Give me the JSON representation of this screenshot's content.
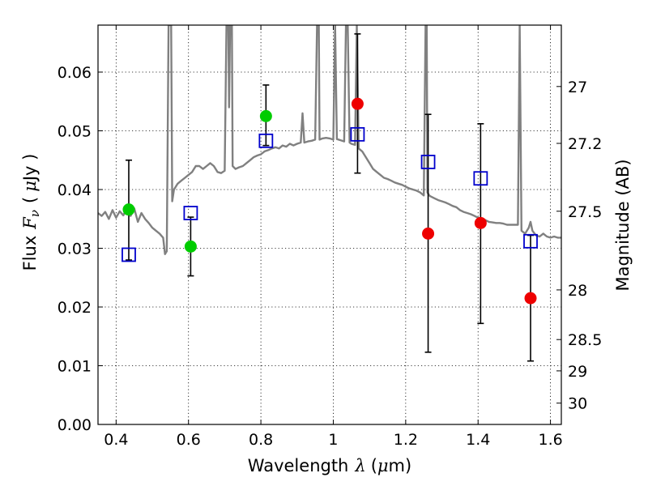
{
  "chart_data": {
    "type": "scatter",
    "title": "",
    "xlabel": {
      "text": "Wavelength",
      "symbol": "λ",
      "unit_open": "(",
      "unit_mu": "μ",
      "unit_rest": "m)"
    },
    "ylabel": {
      "text": "Flux",
      "symbol": "F",
      "subscript": "ν",
      "unit_open": "(",
      "unit_mu": "μ",
      "unit_rest": "Jy )"
    },
    "y2label": "Magnitude (AB)",
    "xlim": [
      0.35,
      1.63
    ],
    "ylim": [
      0.0,
      0.068
    ],
    "grid": true,
    "grid_style": "dotted",
    "x_ticks": [
      {
        "value": 0.4,
        "label": "0.4"
      },
      {
        "value": 0.6,
        "label": "0.6"
      },
      {
        "value": 0.8,
        "label": "0.8"
      },
      {
        "value": 1.0,
        "label": "1"
      },
      {
        "value": 1.2,
        "label": "1.2"
      },
      {
        "value": 1.4,
        "label": "1.4"
      },
      {
        "value": 1.6,
        "label": "1.6"
      }
    ],
    "y_ticks": [
      {
        "value": 0.0,
        "label": "0.00"
      },
      {
        "value": 0.01,
        "label": "0.01"
      },
      {
        "value": 0.02,
        "label": "0.02"
      },
      {
        "value": 0.03,
        "label": "0.03"
      },
      {
        "value": 0.04,
        "label": "0.04"
      },
      {
        "value": 0.05,
        "label": "0.05"
      },
      {
        "value": 0.06,
        "label": "0.06"
      }
    ],
    "y2_ticks": [
      {
        "value": 27.0,
        "label": "27"
      },
      {
        "value": 27.2,
        "label": "27.2"
      },
      {
        "value": 27.5,
        "label": "27.5"
      },
      {
        "value": 28.0,
        "label": "28"
      },
      {
        "value": 28.5,
        "label": "28.5"
      },
      {
        "value": 29.0,
        "label": "29"
      },
      {
        "value": 30.0,
        "label": "30"
      }
    ],
    "colors": {
      "model": "#808080",
      "green_points": "#00cc00",
      "red_points": "#ee0000",
      "model_photometry": "#0000cc",
      "errorbars": "#000000"
    },
    "series": [
      {
        "kind": "line",
        "color": "#808080",
        "points": [
          [
            0.35,
            0.036
          ],
          [
            0.36,
            0.0355
          ],
          [
            0.37,
            0.0362
          ],
          [
            0.38,
            0.035
          ],
          [
            0.39,
            0.0365
          ],
          [
            0.4,
            0.0352
          ],
          [
            0.41,
            0.0363
          ],
          [
            0.42,
            0.0356
          ],
          [
            0.43,
            0.037
          ],
          [
            0.44,
            0.0355
          ],
          [
            0.45,
            0.0368
          ],
          [
            0.46,
            0.0345
          ],
          [
            0.47,
            0.036
          ],
          [
            0.48,
            0.035
          ],
          [
            0.49,
            0.0343
          ],
          [
            0.5,
            0.0335
          ],
          [
            0.51,
            0.033
          ],
          [
            0.52,
            0.0325
          ],
          [
            0.53,
            0.0318
          ],
          [
            0.535,
            0.029
          ],
          [
            0.54,
            0.0295
          ],
          [
            0.545,
            0.068
          ],
          [
            0.548,
            0.068
          ],
          [
            0.55,
            0.068
          ],
          [
            0.552,
            0.068
          ],
          [
            0.555,
            0.038
          ],
          [
            0.56,
            0.04
          ],
          [
            0.57,
            0.041
          ],
          [
            0.58,
            0.0415
          ],
          [
            0.59,
            0.042
          ],
          [
            0.6,
            0.0425
          ],
          [
            0.61,
            0.043
          ],
          [
            0.62,
            0.044
          ],
          [
            0.63,
            0.044
          ],
          [
            0.64,
            0.0435
          ],
          [
            0.65,
            0.044
          ],
          [
            0.66,
            0.0445
          ],
          [
            0.67,
            0.044
          ],
          [
            0.68,
            0.043
          ],
          [
            0.69,
            0.0428
          ],
          [
            0.7,
            0.0432
          ],
          [
            0.705,
            0.068
          ],
          [
            0.71,
            0.068
          ],
          [
            0.712,
            0.054
          ],
          [
            0.715,
            0.068
          ],
          [
            0.72,
            0.068
          ],
          [
            0.722,
            0.044
          ],
          [
            0.73,
            0.0435
          ],
          [
            0.74,
            0.0438
          ],
          [
            0.75,
            0.044
          ],
          [
            0.76,
            0.0445
          ],
          [
            0.77,
            0.045
          ],
          [
            0.78,
            0.0455
          ],
          [
            0.79,
            0.0458
          ],
          [
            0.8,
            0.046
          ],
          [
            0.81,
            0.0465
          ],
          [
            0.82,
            0.0467
          ],
          [
            0.83,
            0.047
          ],
          [
            0.84,
            0.0472
          ],
          [
            0.85,
            0.047
          ],
          [
            0.86,
            0.0475
          ],
          [
            0.87,
            0.0473
          ],
          [
            0.88,
            0.0478
          ],
          [
            0.89,
            0.0475
          ],
          [
            0.9,
            0.0478
          ],
          [
            0.91,
            0.048
          ],
          [
            0.915,
            0.053
          ],
          [
            0.92,
            0.048
          ],
          [
            0.93,
            0.0482
          ],
          [
            0.94,
            0.0483
          ],
          [
            0.95,
            0.0485
          ],
          [
            0.955,
            0.068
          ],
          [
            0.96,
            0.068
          ],
          [
            0.962,
            0.0485
          ],
          [
            0.97,
            0.0487
          ],
          [
            0.98,
            0.0488
          ],
          [
            0.99,
            0.0487
          ],
          [
            1.0,
            0.0485
          ],
          [
            1.005,
            0.068
          ],
          [
            1.01,
            0.0486
          ],
          [
            1.02,
            0.0484
          ],
          [
            1.03,
            0.0482
          ],
          [
            1.035,
            0.068
          ],
          [
            1.04,
            0.068
          ],
          [
            1.045,
            0.048
          ],
          [
            1.05,
            0.0478
          ],
          [
            1.06,
            0.0476
          ],
          [
            1.065,
            0.068
          ],
          [
            1.07,
            0.047
          ],
          [
            1.08,
            0.0465
          ],
          [
            1.09,
            0.0455
          ],
          [
            1.1,
            0.0445
          ],
          [
            1.11,
            0.0435
          ],
          [
            1.12,
            0.043
          ],
          [
            1.13,
            0.0425
          ],
          [
            1.14,
            0.042
          ],
          [
            1.15,
            0.0418
          ],
          [
            1.16,
            0.0415
          ],
          [
            1.17,
            0.0412
          ],
          [
            1.18,
            0.041
          ],
          [
            1.19,
            0.0408
          ],
          [
            1.2,
            0.0405
          ],
          [
            1.21,
            0.0402
          ],
          [
            1.22,
            0.04
          ],
          [
            1.23,
            0.0398
          ],
          [
            1.24,
            0.0395
          ],
          [
            1.25,
            0.039
          ],
          [
            1.255,
            0.068
          ],
          [
            1.258,
            0.068
          ],
          [
            1.26,
            0.0395
          ],
          [
            1.265,
            0.039
          ],
          [
            1.27,
            0.0388
          ],
          [
            1.28,
            0.0385
          ],
          [
            1.29,
            0.0382
          ],
          [
            1.3,
            0.038
          ],
          [
            1.31,
            0.0378
          ],
          [
            1.32,
            0.0375
          ],
          [
            1.33,
            0.0372
          ],
          [
            1.34,
            0.037
          ],
          [
            1.35,
            0.0365
          ],
          [
            1.36,
            0.0362
          ],
          [
            1.37,
            0.036
          ],
          [
            1.38,
            0.0358
          ],
          [
            1.39,
            0.0355
          ],
          [
            1.4,
            0.0352
          ],
          [
            1.41,
            0.035
          ],
          [
            1.42,
            0.0348
          ],
          [
            1.43,
            0.0345
          ],
          [
            1.44,
            0.0344
          ],
          [
            1.45,
            0.0343
          ],
          [
            1.46,
            0.0343
          ],
          [
            1.47,
            0.0342
          ],
          [
            1.48,
            0.034
          ],
          [
            1.49,
            0.034
          ],
          [
            1.5,
            0.034
          ],
          [
            1.51,
            0.034
          ],
          [
            1.515,
            0.068
          ],
          [
            1.52,
            0.033
          ],
          [
            1.53,
            0.0325
          ],
          [
            1.54,
            0.0335
          ],
          [
            1.545,
            0.0345
          ],
          [
            1.55,
            0.033
          ],
          [
            1.56,
            0.0322
          ],
          [
            1.57,
            0.032
          ],
          [
            1.58,
            0.0325
          ],
          [
            1.59,
            0.032
          ],
          [
            1.6,
            0.0318
          ],
          [
            1.61,
            0.032
          ],
          [
            1.62,
            0.0318
          ],
          [
            1.63,
            0.0318
          ]
        ]
      },
      {
        "kind": "points",
        "marker": "circle",
        "color": "#00cc00",
        "points": [
          {
            "x": 0.435,
            "y": 0.0366,
            "yerr_low": 0.028,
            "yerr_high": 0.045
          },
          {
            "x": 0.606,
            "y": 0.0303,
            "yerr_low": 0.0253,
            "yerr_high": 0.0353
          },
          {
            "x": 0.814,
            "y": 0.0525,
            "yerr_low": 0.0475,
            "yerr_high": 0.0578
          }
        ]
      },
      {
        "kind": "points",
        "marker": "circle",
        "color": "#ee0000",
        "points": [
          {
            "x": 1.067,
            "y": 0.0546,
            "yerr_low": 0.0428,
            "yerr_high": 0.0665
          },
          {
            "x": 1.262,
            "y": 0.0325,
            "yerr_low": 0.0123,
            "yerr_high": 0.0528
          },
          {
            "x": 1.407,
            "y": 0.0343,
            "yerr_low": 0.0172,
            "yerr_high": 0.0512
          },
          {
            "x": 1.545,
            "y": 0.0215,
            "yerr_low": 0.0108,
            "yerr_high": 0.0322
          }
        ]
      },
      {
        "kind": "points",
        "marker": "open-square",
        "color": "#0000cc",
        "points": [
          {
            "x": 0.435,
            "y": 0.0289
          },
          {
            "x": 0.606,
            "y": 0.036
          },
          {
            "x": 0.814,
            "y": 0.0483
          },
          {
            "x": 1.067,
            "y": 0.0494
          },
          {
            "x": 1.262,
            "y": 0.0447
          },
          {
            "x": 1.407,
            "y": 0.0419
          },
          {
            "x": 1.545,
            "y": 0.0312
          }
        ]
      }
    ]
  }
}
